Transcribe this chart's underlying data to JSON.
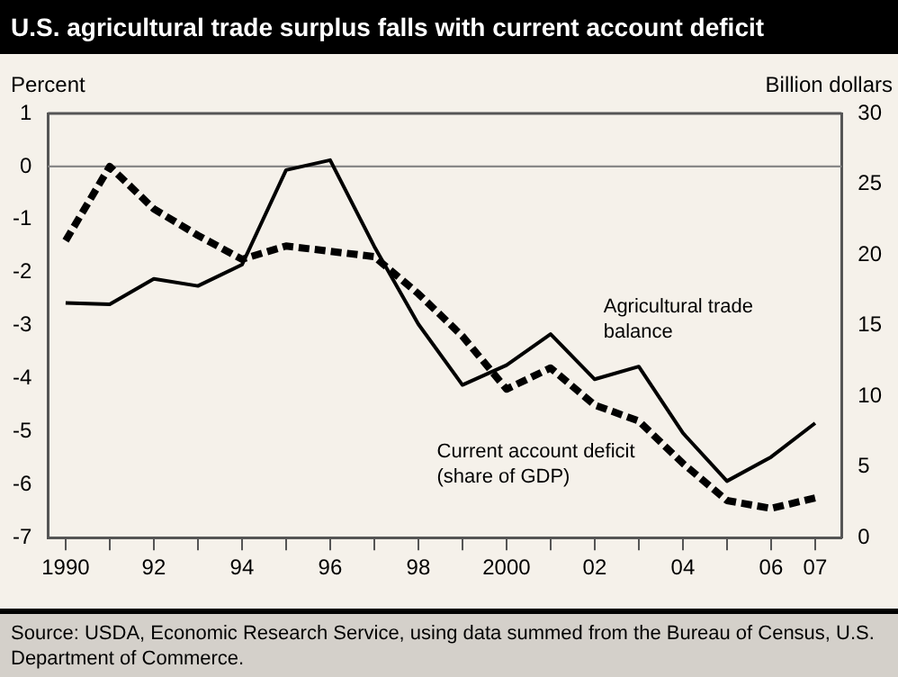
{
  "chart_data": {
    "type": "line",
    "title": "U.S. agricultural trade surplus falls with current account deficit",
    "ylabel": "Percent",
    "y2label": "Billion dollars",
    "x": [
      1990,
      1991,
      1992,
      1993,
      1994,
      1995,
      1996,
      1997,
      1998,
      1999,
      2000,
      2001,
      2002,
      2003,
      2004,
      2005,
      2006,
      2007
    ],
    "series": [
      {
        "name": "Agricultural trade balance",
        "color": "#000000",
        "axis": "y2",
        "line_style": "solid",
        "values": [
          16.6,
          16.5,
          18.3,
          17.8,
          19.3,
          26.0,
          26.7,
          20.6,
          15.1,
          10.8,
          12.2,
          14.4,
          11.2,
          12.1,
          7.4,
          4.0,
          5.7,
          8.1
        ]
      },
      {
        "name": "Current account deficit (share of GDP)",
        "color": "#000000",
        "axis": "y",
        "line_style": "dashed",
        "values": [
          -1.4,
          0.0,
          -0.8,
          -1.3,
          -1.75,
          -1.5,
          -1.6,
          -1.7,
          -2.4,
          -3.2,
          -4.2,
          -3.8,
          -4.5,
          -4.8,
          -5.6,
          -6.3,
          -6.45,
          -6.25
        ]
      }
    ],
    "xlim": [
      1989.6,
      2007.6
    ],
    "xticks": [
      1990,
      {
        "value": 1991,
        "label": null
      },
      {
        "value": 1992,
        "label": "92"
      },
      {
        "value": 1993,
        "label": null
      },
      {
        "value": 1994,
        "label": "94"
      },
      {
        "value": 1995,
        "label": null
      },
      {
        "value": 1996,
        "label": "96"
      },
      {
        "value": 1997,
        "label": null
      },
      {
        "value": 1998,
        "label": "98"
      },
      {
        "value": 1999,
        "label": null
      },
      2000,
      {
        "value": 2001,
        "label": null
      },
      {
        "value": 2002,
        "label": "02"
      },
      {
        "value": 2003,
        "label": null
      },
      {
        "value": 2004,
        "label": "04"
      },
      {
        "value": 2005,
        "label": null
      },
      {
        "value": 2006,
        "label": "06"
      },
      {
        "value": 2007,
        "label": "07"
      }
    ],
    "ylim": [
      -7,
      1
    ],
    "yticks": [
      -7,
      -6,
      -5,
      -4,
      -3,
      -2,
      -1,
      0,
      1
    ],
    "y2lim": [
      0,
      30
    ],
    "y2ticks": [
      0,
      5,
      10,
      15,
      20,
      25,
      30
    ],
    "ref_lines": [
      {
        "axis": "y",
        "value": 0,
        "color": "#888888"
      }
    ],
    "grid": false,
    "legend": false,
    "marker": "none",
    "annotations": [
      "Source: USDA, Economic Research Service, using data summed from the Bureau of Census, U.S. Department of  Commerce."
    ]
  }
}
